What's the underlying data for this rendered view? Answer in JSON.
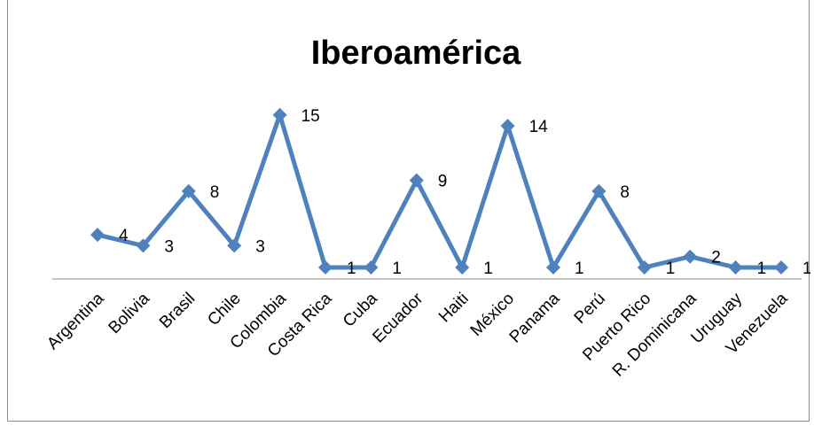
{
  "chart_data": {
    "type": "line",
    "title": "Iberoamérica",
    "xlabel": "",
    "ylabel": "",
    "categories": [
      "Argentina",
      "Bolivia",
      "Brasil",
      "Chile",
      "Colombia",
      "Costa Rica",
      "Cuba",
      "Ecuador",
      "Haiti",
      "México",
      "Panama",
      "Perú",
      "Puerto Rico",
      "R. Dominicana",
      "Uruguay",
      "Venezuela"
    ],
    "series": [
      {
        "values": [
          4,
          3,
          8,
          3,
          15,
          1,
          1,
          9,
          1,
          14,
          1,
          8,
          1,
          2,
          1,
          1
        ]
      }
    ],
    "data_labels": true,
    "ylim": [
      0,
      16
    ],
    "y_axis_visible": false,
    "grid": false,
    "legend": "none",
    "line_color": "#4f81bd",
    "marker": "diamond"
  }
}
